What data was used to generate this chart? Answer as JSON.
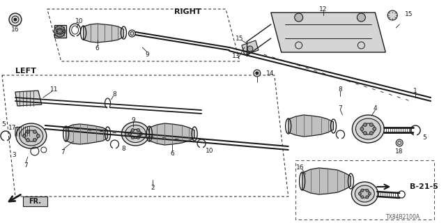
{
  "bg_color": "#ffffff",
  "diagram_color": "#1a1a1a",
  "label_RIGHT": "RIGHT",
  "label_LEFT": "LEFT",
  "label_FR": "FR.",
  "label_ref": "B-21-5",
  "label_code": "TX84B2100A",
  "fig_width": 6.4,
  "fig_height": 3.2,
  "dpi": 100
}
